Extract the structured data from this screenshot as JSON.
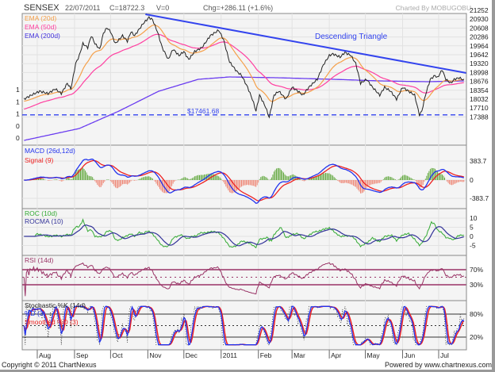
{
  "header": {
    "symbol": "SENSEX",
    "date": "22/07/2011",
    "close": "C=18722.3",
    "volume": "V=0",
    "change": "Chg=+286.11 (+1.6%)",
    "charted_by": "Charted By MOBUGOBU"
  },
  "footer": {
    "copyright": "Copyright © 2011 ChartNexus",
    "powered": "Powered by www.chartnexus.com"
  },
  "colors": {
    "close": "#222222",
    "ema20": "#f5a04a",
    "ema50": "#ff3fa0",
    "ema200": "#6a3cf0",
    "triangle": "#3344ee",
    "macd": "#2233ee",
    "signal": "#ee2222",
    "hist_up": "#66aa44",
    "hist_down": "#ee8877",
    "roc": "#33aa33",
    "rocma": "#333399",
    "rsi": "#993366",
    "stoch_k": "#333333",
    "stoch_d": "#2233ee",
    "stoch_sd": "#ee2222"
  },
  "chart_data": {
    "type": "line",
    "title": "SENSEX",
    "x_unit": "days since 2010-07-01",
    "months": [
      {
        "label": "Aug",
        "day": 31
      },
      {
        "label": "Sep",
        "day": 62
      },
      {
        "label": "Oct",
        "day": 92
      },
      {
        "label": "Nov",
        "day": 123
      },
      {
        "label": "Dec",
        "day": 153
      },
      {
        "label": "2011",
        "day": 184
      },
      {
        "label": "Feb",
        "day": 215
      },
      {
        "label": "Mar",
        "day": 243
      },
      {
        "label": "Apr",
        "day": 274
      },
      {
        "label": "May",
        "day": 304
      },
      {
        "label": "Jun",
        "day": 335
      },
      {
        "label": "Jul",
        "day": 365
      }
    ],
    "main": {
      "legend": [
        "EMA (20d)",
        "EMA (50d)",
        "EMA (200d)"
      ],
      "y_ticks": [
        "21252",
        "20930",
        "20608",
        "20286",
        "19964",
        "19642",
        "19320",
        "18998",
        "18676",
        "18354",
        "18032",
        "17710",
        "17388"
      ],
      "ylim": [
        16000,
        21252
      ],
      "left_ticks": [
        "1",
        "1",
        "1",
        "0",
        "0"
      ],
      "close": {
        "days": [
          20,
          26,
          33,
          40,
          46,
          51,
          56,
          59,
          63,
          66,
          69,
          73,
          76,
          79,
          83,
          86,
          89,
          92,
          96,
          99,
          102,
          106,
          109,
          112,
          119,
          124,
          127,
          131,
          135,
          140,
          144,
          149,
          153,
          157,
          162,
          168,
          175,
          182,
          186,
          191,
          197,
          201,
          206,
          210,
          213,
          216,
          221,
          224,
          228,
          232,
          238,
          243,
          248,
          252,
          257,
          264,
          269,
          274,
          277,
          283,
          287,
          292,
          296,
          300,
          305,
          310,
          316,
          320,
          325,
          330,
          335,
          340,
          345,
          349,
          351,
          354,
          358,
          362,
          364,
          368,
          371,
          375,
          378,
          382,
          386
        ],
        "values": [
          18032,
          18176,
          18319,
          18233,
          18406,
          18233,
          18607,
          18406,
          19326,
          19613,
          20044,
          19901,
          20332,
          20044,
          19843,
          20418,
          20619,
          20476,
          20044,
          20188,
          20332,
          20131,
          20476,
          20332,
          20763,
          20993,
          20907,
          20476,
          19901,
          19469,
          19843,
          19613,
          19757,
          19469,
          19757,
          19901,
          20332,
          20533,
          20188,
          19383,
          19038,
          18894,
          18463,
          18032,
          17601,
          18176,
          17745,
          17371,
          18176,
          18319,
          18032,
          18463,
          18319,
          18176,
          18463,
          18751,
          19268,
          19613,
          19671,
          19556,
          19728,
          19613,
          19326,
          18607,
          18751,
          18463,
          18176,
          18463,
          18319,
          18032,
          18463,
          18319,
          18176,
          17457,
          17601,
          18176,
          18751,
          18894,
          18808,
          19096,
          18751,
          18607,
          18751,
          18808,
          18722
        ]
      },
      "ema200": {
        "days": [
          20,
          66,
          99,
          132,
          165,
          191,
          231,
          277,
          317,
          356,
          386
        ],
        "values": [
          16537,
          16968,
          17601,
          18319,
          18751,
          18837,
          18808,
          18751,
          18693,
          18664,
          18693
        ]
      },
      "ema_seed": {
        "ema20": 17950,
        "ema50": 17650
      },
      "triangle": {
        "from": {
          "day": 121,
          "value": 21108
        },
        "to": {
          "day": 388,
          "value": 18981
        }
      },
      "support": {
        "value": 17461.68,
        "label": "$17461.68"
      },
      "annotation": "Descending Triangle"
    },
    "macd": {
      "legend": [
        "MACD (26d,12d)",
        "Signal (9)"
      ],
      "y_ticks": [
        "383.7",
        "0",
        "-383.7"
      ],
      "range": 383.7
    },
    "roc": {
      "legend": [
        "ROC (10d)",
        "ROCMA (10)"
      ],
      "y_ticks": [
        "10",
        "5",
        "0",
        "-5"
      ]
    },
    "rsi": {
      "legend": [
        "RSI (14d)"
      ],
      "y_ticks": [
        "70%",
        "30%"
      ]
    },
    "stoch": {
      "legend": [
        "Stochastic %K (14d)",
        "%D (3)",
        "Smoothed %D (3)"
      ],
      "y_ticks": [
        "80%",
        "20%"
      ]
    }
  }
}
